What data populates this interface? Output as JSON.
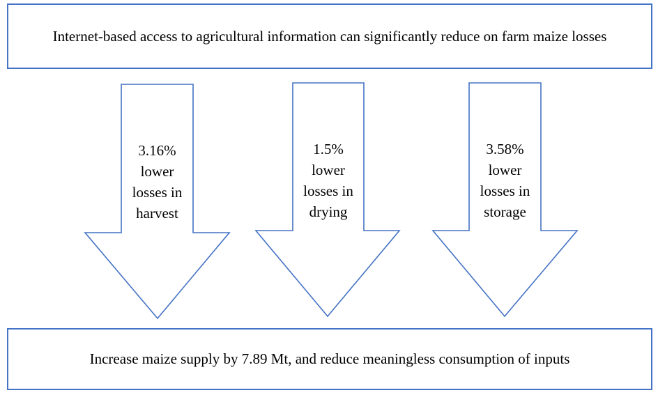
{
  "diagram": {
    "top_box": {
      "text": "Internet-based access to agricultural information can significantly reduce on farm maize losses"
    },
    "arrows": [
      {
        "lines": [
          "3.16%",
          "lower",
          "losses in",
          "harvest"
        ]
      },
      {
        "lines": [
          "1.5%",
          "lower",
          "losses in",
          "drying"
        ]
      },
      {
        "lines": [
          "3.58%",
          "lower",
          "losses in",
          "storage"
        ]
      }
    ],
    "bottom_box": {
      "text": "Increase maize supply by 7.89 Mt, and reduce meaningless consumption of inputs"
    },
    "colors": {
      "outline": "#4472c4",
      "fill": "#ffffff",
      "text": "#000000"
    }
  }
}
